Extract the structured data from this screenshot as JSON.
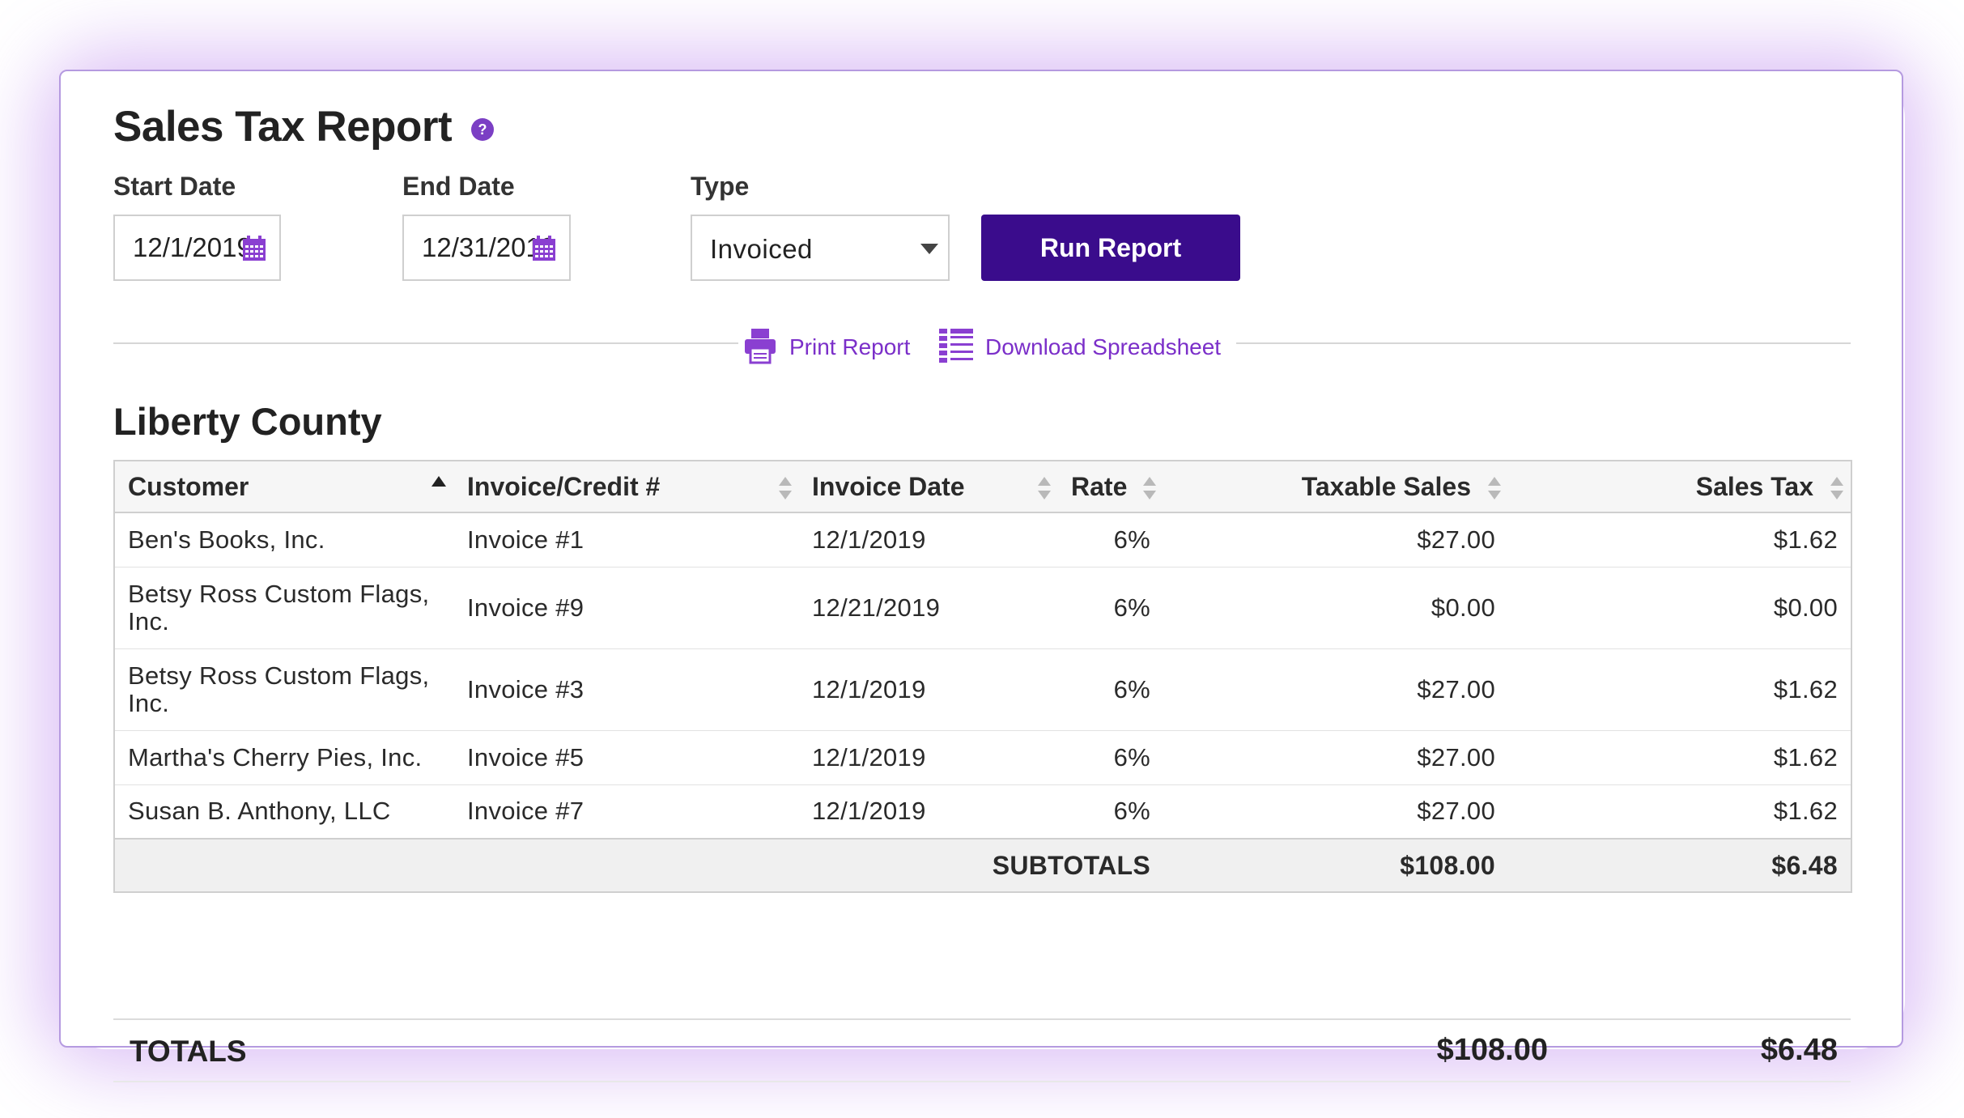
{
  "report": {
    "title": "Sales Tax Report",
    "help_icon": "question-circle-icon"
  },
  "filters": {
    "start_date": {
      "label": "Start Date",
      "value": "12/1/2019",
      "icon": "calendar-icon"
    },
    "end_date": {
      "label": "End Date",
      "value": "12/31/2019",
      "icon": "calendar-icon"
    },
    "type": {
      "label": "Type",
      "value": "Invoiced",
      "icon": "caret-down-icon"
    },
    "run_button": "Run Report"
  },
  "actions": {
    "print": {
      "label": "Print Report",
      "icon": "printer-icon"
    },
    "download": {
      "label": "Download Spreadsheet",
      "icon": "spreadsheet-list-icon"
    }
  },
  "section": {
    "title": "Liberty County",
    "columns": [
      "Customer",
      "Invoice/Credit #",
      "Invoice Date",
      "Rate",
      "Taxable Sales",
      "Sales Tax"
    ],
    "sorted_column": "Customer",
    "sort_direction": "ascending",
    "rows": [
      {
        "customer": "Ben's Books, Inc.",
        "invoice": "Invoice #1",
        "date": "12/1/2019",
        "rate": "6%",
        "taxable": "$27.00",
        "tax": "$1.62"
      },
      {
        "customer": "Betsy Ross Custom Flags, Inc.",
        "invoice": "Invoice #9",
        "date": "12/21/2019",
        "rate": "6%",
        "taxable": "$0.00",
        "tax": "$0.00"
      },
      {
        "customer": "Betsy Ross Custom Flags, Inc.",
        "invoice": "Invoice #3",
        "date": "12/1/2019",
        "rate": "6%",
        "taxable": "$27.00",
        "tax": "$1.62"
      },
      {
        "customer": "Martha's Cherry Pies, Inc.",
        "invoice": "Invoice #5",
        "date": "12/1/2019",
        "rate": "6%",
        "taxable": "$27.00",
        "tax": "$1.62"
      },
      {
        "customer": "Susan B. Anthony, LLC",
        "invoice": "Invoice #7",
        "date": "12/1/2019",
        "rate": "6%",
        "taxable": "$27.00",
        "tax": "$1.62"
      }
    ],
    "subtotals": {
      "label": "SUBTOTALS",
      "taxable": "$108.00",
      "tax": "$6.48"
    }
  },
  "totals": {
    "label": "TOTALS",
    "taxable": "$108.00",
    "tax": "$6.48"
  },
  "colors": {
    "accent": "#3a0c8c",
    "link": "#7b2fc9",
    "card_border": "#b59ae0",
    "glow": "#b478eb"
  }
}
